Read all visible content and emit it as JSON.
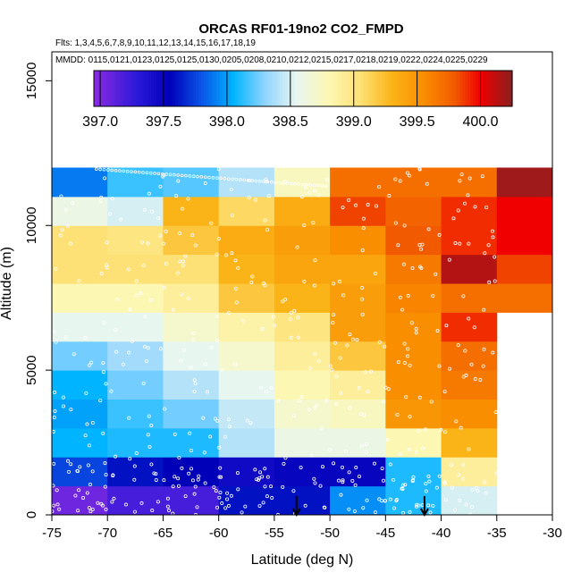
{
  "chart_data": {
    "type": "heatmap",
    "title": "ORCAS RF01-19no2 CO2_FMPD",
    "flights_label": "Flts: 1,3,4,5,6,7,8,9,10,11,12,13,14,15,16,17,18,19",
    "dates_label": "MMDD: 0115,0121,0123,0125,0125,0130,0205,0208,0210,0212,0215,0217,0218,0219,0222,0224,0225,0229",
    "xlabel": "Latitude (deg N)",
    "ylabel": "Altitude (m)",
    "xlim": [
      -75,
      -30
    ],
    "ylim": [
      0,
      16000
    ],
    "x_ticks": [
      -75,
      -70,
      -65,
      -60,
      -55,
      -50,
      -45,
      -40,
      -35,
      -30
    ],
    "x_tick_labels": [
      "-75",
      "-70",
      "-65",
      "-60",
      "-55",
      "-50",
      "-45",
      "-40",
      "-35",
      "-30"
    ],
    "y_ticks": [
      0,
      5000,
      10000,
      15000
    ],
    "y_tick_labels": [
      "0",
      "5000",
      "10000",
      "15000"
    ],
    "lat_bins": [
      -75,
      -70,
      -65,
      -60,
      -55,
      -50,
      -45,
      -40,
      -35,
      -30
    ],
    "alt_bins": [
      0,
      1000,
      2000,
      3000,
      4000,
      5000,
      6000,
      7000,
      8000,
      9000,
      10000,
      11000,
      12000
    ],
    "values": [
      [
        397.05,
        397.2,
        397.2,
        397.6,
        397.6,
        397.95,
        398.1,
        398.5,
        null
      ],
      [
        397.75,
        397.6,
        397.55,
        397.45,
        397.5,
        397.5,
        398.1,
        398.9,
        null
      ],
      [
        398.05,
        398.1,
        398.1,
        398.4,
        398.6,
        398.6,
        398.8,
        399.3,
        null
      ],
      [
        398.0,
        398.15,
        398.25,
        398.45,
        398.7,
        398.75,
        399.5,
        399.55,
        null
      ],
      [
        398.05,
        398.25,
        398.4,
        398.55,
        398.8,
        398.9,
        399.55,
        399.65,
        null
      ],
      [
        398.25,
        398.35,
        398.55,
        398.7,
        398.9,
        399.2,
        399.55,
        399.7,
        null
      ],
      [
        398.55,
        398.55,
        398.7,
        398.85,
        399.0,
        399.45,
        399.55,
        399.9,
        null
      ],
      [
        398.8,
        398.8,
        398.9,
        399.2,
        399.3,
        399.45,
        399.6,
        399.7,
        399.7
      ],
      [
        399.05,
        399.05,
        399.05,
        399.3,
        399.4,
        399.4,
        399.65,
        400.15,
        399.85
      ],
      [
        399.05,
        399.0,
        399.2,
        399.35,
        399.45,
        399.55,
        399.8,
        399.9,
        400.0
      ],
      [
        398.6,
        398.5,
        399.3,
        399.1,
        399.35,
        399.85,
        399.75,
        399.9,
        400.0
      ],
      [
        397.9,
        398.15,
        398.2,
        398.4,
        398.75,
        399.7,
        399.7,
        399.7,
        400.2
      ]
    ],
    "colorbar": {
      "min": 396.95,
      "max": 400.25,
      "ticks": [
        397.0,
        397.5,
        398.0,
        398.5,
        399.0,
        399.5,
        400.0
      ],
      "tick_labels": [
        "397.0",
        "397.5",
        "398.0",
        "398.5",
        "399.0",
        "399.5",
        "400.0"
      ],
      "stops": [
        {
          "v": 396.95,
          "c": "#8b2be2"
        },
        {
          "v": 397.3,
          "c": "#2a18d8"
        },
        {
          "v": 397.55,
          "c": "#0000b8"
        },
        {
          "v": 397.8,
          "c": "#0a55e8"
        },
        {
          "v": 398.05,
          "c": "#00b4ff"
        },
        {
          "v": 398.3,
          "c": "#90d4ff"
        },
        {
          "v": 398.55,
          "c": "#e8f6f0"
        },
        {
          "v": 398.8,
          "c": "#fdf7b4"
        },
        {
          "v": 399.05,
          "c": "#fde176"
        },
        {
          "v": 399.3,
          "c": "#fbb418"
        },
        {
          "v": 399.55,
          "c": "#f98e00"
        },
        {
          "v": 399.8,
          "c": "#f25a00"
        },
        {
          "v": 400.0,
          "c": "#f00000"
        },
        {
          "v": 400.25,
          "c": "#8b2020"
        }
      ]
    },
    "markers": [
      {
        "lat": -53,
        "alt": 0,
        "symbol": "down-arrow"
      },
      {
        "lat": -41.5,
        "alt": 0,
        "symbol": "down-arrow"
      }
    ]
  }
}
